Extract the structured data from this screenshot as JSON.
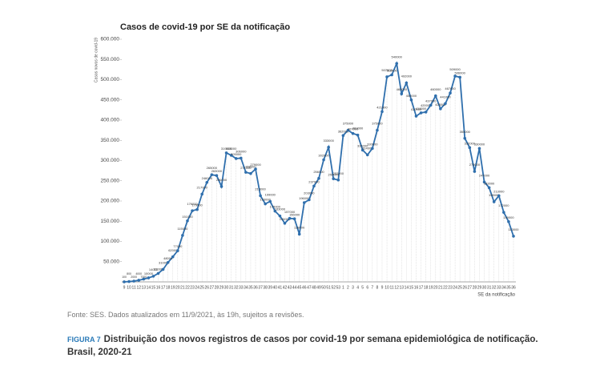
{
  "chart_data": {
    "type": "line",
    "title": "Casos de covid-19 por SE da notificação",
    "y_label": "Casos novos de covid-19",
    "x_label": "SE da notificação",
    "source": "Fonte: SES. Dados atualizados em 11/9/2021, às 19h, sujeitos a revisões.",
    "figure_label": "FIGURA 7",
    "caption": "Distribuição dos novos registros de casos por covid-19 por semana epidemiológica de notificação. Brasil, 2020-21",
    "categories": [
      "9",
      "10",
      "11",
      "12",
      "13",
      "14",
      "15",
      "16",
      "17",
      "18",
      "19",
      "20",
      "21",
      "22",
      "23",
      "24",
      "25",
      "26",
      "27",
      "28",
      "29",
      "30",
      "31",
      "32",
      "33",
      "34",
      "35",
      "36",
      "37",
      "38",
      "39",
      "40",
      "41",
      "42",
      "43",
      "44",
      "45",
      "46",
      "47",
      "48",
      "49",
      "50",
      "51",
      "52",
      "53",
      "1",
      "2",
      "3",
      "4",
      "5",
      "6",
      "7",
      "8",
      "9",
      "10",
      "11",
      "12",
      "13",
      "14",
      "15",
      "16",
      "17",
      "18",
      "19",
      "20",
      "21",
      "22",
      "23",
      "24",
      "25",
      "26",
      "27",
      "28",
      "29",
      "30",
      "31",
      "32",
      "33",
      "34",
      "35",
      "36"
    ],
    "series": [
      {
        "name": "Casos novos de covid-19",
        "color": "#2f6fad",
        "values": [
          100,
          800,
          2000,
          4000,
          7000,
          10000,
          14000,
          21000,
          31000,
          48000,
          62000,
          77000,
          115000,
          151000,
          176000,
          179000,
          217000,
          246000,
          265000,
          263000,
          236000,
          319000,
          313000,
          305000,
          306000,
          271000,
          268000,
          279000,
          213000,
          193000,
          199000,
          175000,
          163000,
          145000,
          157000,
          156000,
          118000,
          196000,
          203000,
          237000,
          256000,
          302000,
          333000,
          255000,
          252000,
          362000,
          375000,
          367000,
          363000,
          326000,
          314000,
          330000,
          375000,
          421000,
          507000,
          512000,
          540000,
          465000,
          492000,
          450000,
          410000,
          418000,
          420000,
          437000,
          460000,
          428000,
          441000,
          467000,
          509000,
          506000,
          355000,
          332000,
          273000,
          330000,
          247000,
          233000,
          198000,
          213000,
          172000,
          149000,
          113000
        ]
      }
    ],
    "ylim": [
      0,
      600000
    ],
    "yticks": [
      {
        "value": 50000,
        "label": "50.000"
      },
      {
        "value": 100000,
        "label": "100.000"
      },
      {
        "value": 150000,
        "label": "150.000"
      },
      {
        "value": 200000,
        "label": "200.000"
      },
      {
        "value": 250000,
        "label": "250.000"
      },
      {
        "value": 300000,
        "label": "300.000"
      },
      {
        "value": 350000,
        "label": "350.000"
      },
      {
        "value": 400000,
        "label": "400.000"
      },
      {
        "value": 450000,
        "label": "450.000"
      },
      {
        "value": 500000,
        "label": "500.000"
      },
      {
        "value": 550000,
        "label": "550.000"
      },
      {
        "value": 600000,
        "label": "600.000"
      }
    ]
  }
}
